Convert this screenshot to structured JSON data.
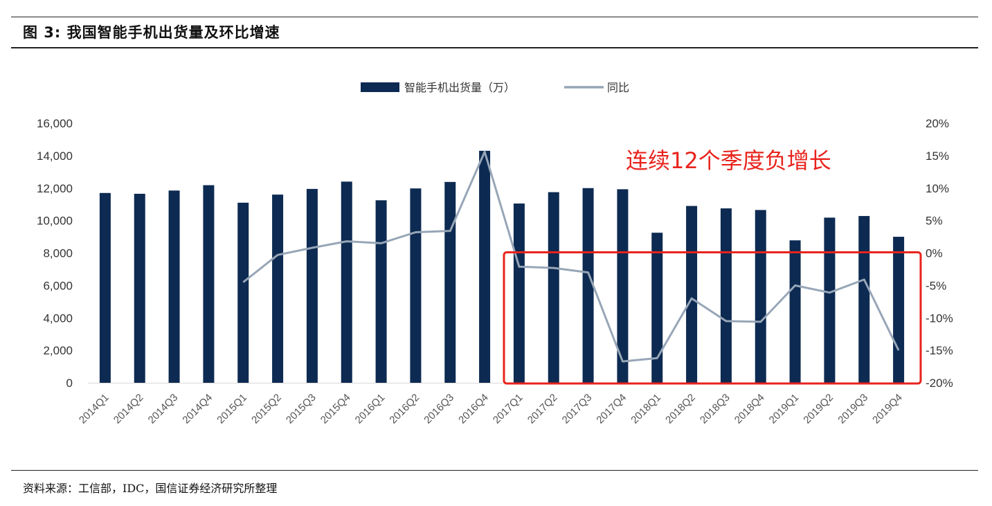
{
  "figure": {
    "title": "图 3:  我国智能手机出货量及环比增速",
    "source": "资料来源：工信部，IDC，国信证券经济研究所整理"
  },
  "chart_data": {
    "type": "bar",
    "categories": [
      "2014Q1",
      "2014Q2",
      "2014Q3",
      "2014Q4",
      "2015Q1",
      "2015Q2",
      "2015Q3",
      "2015Q4",
      "2016Q1",
      "2016Q2",
      "2016Q3",
      "2016Q4",
      "2017Q1",
      "2017Q2",
      "2017Q3",
      "2017Q4",
      "2018Q1",
      "2018Q2",
      "2018Q3",
      "2018Q4",
      "2019Q1",
      "2019Q2",
      "2019Q3",
      "2019Q4"
    ],
    "series": [
      {
        "name": "智能手机出货量（万）",
        "type": "bar",
        "axis": "left",
        "color": "#0d2a52",
        "values": [
          11700,
          11650,
          11850,
          12180,
          11100,
          11600,
          11950,
          12400,
          11250,
          11980,
          12380,
          14300,
          11050,
          11750,
          12000,
          11930,
          9250,
          10900,
          10750,
          10650,
          8780,
          10180,
          10280,
          9000
        ]
      },
      {
        "name": "同比",
        "type": "line",
        "axis": "right",
        "color": "#97a6b7",
        "values": [
          null,
          null,
          null,
          null,
          -4.5,
          -0.3,
          0.8,
          1.8,
          1.5,
          3.2,
          3.4,
          15.6,
          -2.1,
          -2.3,
          -3.0,
          -16.7,
          -16.2,
          -7.0,
          -10.5,
          -10.6,
          -5.0,
          -6.1,
          -4.1,
          -15.0
        ]
      }
    ],
    "ylim": [
      0,
      16000
    ],
    "yticks": [
      0,
      2000,
      4000,
      6000,
      8000,
      10000,
      12000,
      14000,
      16000
    ],
    "ytick_labels": [
      "0",
      "2,000",
      "4,000",
      "6,000",
      "8,000",
      "10,000",
      "12,000",
      "14,000",
      "16,000"
    ],
    "y2lim": [
      -20,
      20
    ],
    "y2ticks": [
      -20,
      -15,
      -10,
      -5,
      0,
      5,
      10,
      15,
      20
    ],
    "y2tick_labels": [
      "-20%",
      "-15%",
      "-10%",
      "-5%",
      "0%",
      "5%",
      "10%",
      "15%",
      "20%"
    ],
    "legend_position": "top-center",
    "grid": false,
    "annotation": {
      "text": "连续12个季度负增长",
      "color": "#e8231c",
      "box_color": "#e8231c",
      "highlight_from": "2017Q1",
      "highlight_to": "2019Q4",
      "box_y2_range": [
        -20,
        0
      ]
    }
  }
}
